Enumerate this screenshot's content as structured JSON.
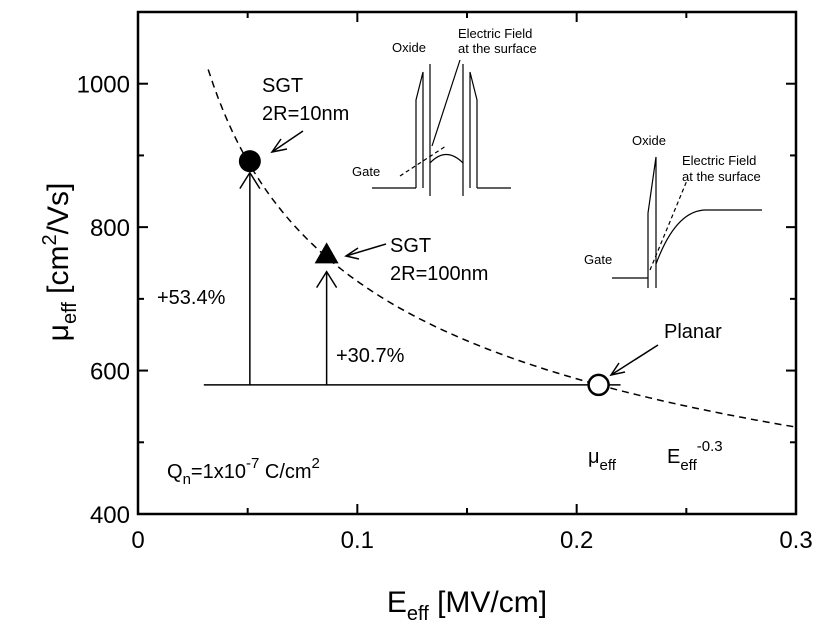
{
  "chart_data": {
    "type": "scatter",
    "title": "",
    "xlabel": {
      "main": "E",
      "sub": "eff",
      "rest": " [MV/cm]"
    },
    "ylabel": {
      "main": "μ",
      "sub": "eff",
      "rest1": " [cm",
      "sup": "2",
      "rest2": "/Vs]"
    },
    "xlim": [
      0,
      0.3
    ],
    "ylim": [
      400,
      1100
    ],
    "xticks": [
      0,
      0.1,
      0.2,
      0.3
    ],
    "xtick_labels": [
      "0",
      "0.1",
      "0.2",
      "0.3"
    ],
    "yticks": [
      400,
      600,
      800,
      1000
    ],
    "ytick_labels": [
      "400",
      "600",
      "800",
      "1000"
    ],
    "fit_curve": {
      "style": "dashed",
      "coefficient": 580,
      "x_ref": 0.21,
      "exponent": -0.3,
      "x_start": 0.032,
      "x_end": 0.3
    },
    "baseline": {
      "value": 580,
      "x_start": 0.03,
      "x_end": 0.22
    },
    "points": [
      {
        "x": 0.051,
        "y": 892,
        "marker": "filled-circle",
        "label_line1": "SGT",
        "label_line2": "2R=10nm"
      },
      {
        "x": 0.086,
        "y": 762,
        "marker": "filled-triangle",
        "label_line1": "SGT",
        "label_line2": "2R=100nm"
      },
      {
        "x": 0.21,
        "y": 580,
        "marker": "open-circle",
        "label_line1": "Planar",
        "label_line2": ""
      }
    ],
    "enhancements": [
      {
        "x": 0.051,
        "from": 580,
        "to": 876,
        "label": "+53.4%"
      },
      {
        "x": 0.086,
        "from": 580,
        "to": 738,
        "label": "+30.7%"
      }
    ],
    "condition": {
      "q": "Q",
      "q_sub": "n",
      "eq": "=1x10",
      "exp": "-7",
      "unit": " C/cm",
      "unit_sup": "2"
    },
    "relation": {
      "mu": "μ",
      "mu_sub": "eff",
      "e": "E",
      "e_sub": "eff",
      "e_sup": "-0.3"
    },
    "inset_sgt": {
      "oxide": "Oxide",
      "field_line1": "Electric Field",
      "field_line2": "at the surface",
      "gate": "Gate"
    },
    "inset_planar": {
      "oxide": "Oxide",
      "field_line1": "Electric Field",
      "field_line2": "at the surface",
      "gate": "Gate"
    }
  }
}
